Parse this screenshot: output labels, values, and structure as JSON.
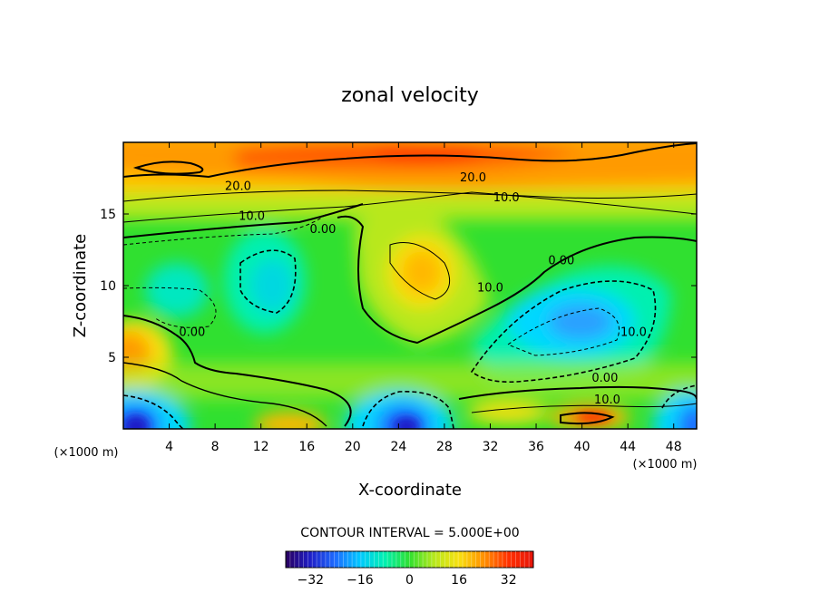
{
  "chart_data": {
    "type": "heatmap",
    "title": "zonal velocity",
    "xlabel": "X-coordinate",
    "ylabel": "Z-coordinate",
    "x_unit_left": "(×1000 m)",
    "x_unit_right": "(×1000 m)",
    "xlim": [
      0,
      50
    ],
    "ylim": [
      0,
      20
    ],
    "x_ticks": [
      4,
      8,
      12,
      16,
      20,
      24,
      28,
      32,
      36,
      40,
      44,
      48
    ],
    "x_tick_labels": [
      "4",
      "8",
      "12",
      "16",
      "20",
      "24",
      "28",
      "32",
      "36",
      "40",
      "44",
      "48"
    ],
    "y_ticks": [
      5,
      10,
      15
    ],
    "y_tick_labels": [
      "5",
      "10",
      "15"
    ],
    "contour_interval_text": "CONTOUR INTERVAL = 5.000E+00",
    "contour_interval": 5.0,
    "colorbar": {
      "range": [
        -40,
        40
      ],
      "ticks": [
        -32,
        -16,
        0,
        16,
        32
      ],
      "tick_labels": [
        "−32",
        "−16",
        "0",
        "16",
        "32"
      ],
      "colors": [
        "#2a0060",
        "#1f1fc8",
        "#1e6cff",
        "#00c8ff",
        "#00f0b0",
        "#30e030",
        "#b8e81c",
        "#f8e010",
        "#ff9000",
        "#ff3000",
        "#e6140a"
      ]
    },
    "contour_labels": [
      {
        "x": 10,
        "z": 17.0,
        "text": "20.0"
      },
      {
        "x": 30.5,
        "z": 17.6,
        "text": "20.0"
      },
      {
        "x": 33.4,
        "z": 16.2,
        "text": "10.0"
      },
      {
        "x": 11.2,
        "z": 14.9,
        "text": "10.0"
      },
      {
        "x": 17.4,
        "z": 14.0,
        "text": "0.00"
      },
      {
        "x": 38.2,
        "z": 11.8,
        "text": "0.00"
      },
      {
        "x": 32.0,
        "z": 9.9,
        "text": "10.0"
      },
      {
        "x": 6.0,
        "z": 6.8,
        "text": "0.00"
      },
      {
        "x": 44.5,
        "z": 6.8,
        "text": "10.0"
      },
      {
        "x": 42.0,
        "z": 3.6,
        "text": "0.00"
      },
      {
        "x": 42.2,
        "z": 2.1,
        "text": "10.0"
      }
    ],
    "features": [
      {
        "name": "upper jet maximum",
        "x": 26,
        "z": 18.6,
        "value": 32
      },
      {
        "name": "elevated positive core",
        "x": 26,
        "z": 11.0,
        "value": 16
      },
      {
        "name": "surface positive core",
        "x": 41,
        "z": 1.2,
        "value": 28
      },
      {
        "name": "left positive core",
        "x": 1.5,
        "z": 5.5,
        "value": 14
      },
      {
        "name": "western negative cell",
        "x": 1.0,
        "z": 0.6,
        "value": -32
      },
      {
        "name": "central negative cell",
        "x": 25,
        "z": 0.6,
        "value": -30
      },
      {
        "name": "eastern negative cell",
        "x": 49,
        "z": 0.8,
        "value": -28
      },
      {
        "name": "right negative core",
        "x": 38.5,
        "z": 6.5,
        "value": -18
      },
      {
        "name": "left negative core",
        "x": 12,
        "z": 10.0,
        "value": -10
      }
    ]
  }
}
